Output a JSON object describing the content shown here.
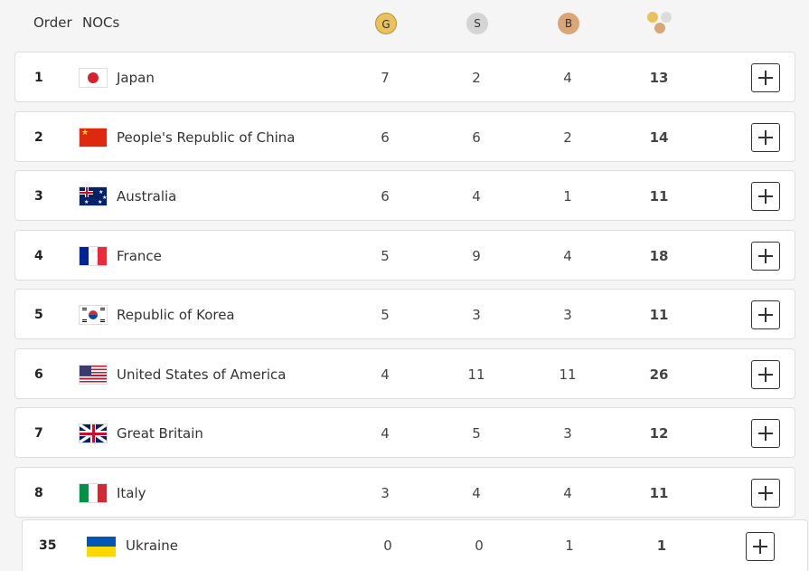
{
  "header": {
    "order_label": "Order",
    "noc_label": "NOCs",
    "gold_label": "G",
    "silver_label": "S",
    "bronze_label": "B",
    "total_icon": "total-medals-icon"
  },
  "rows": [
    {
      "rank": "1",
      "flag": "japan-flag-icon",
      "noc": "Japan",
      "gold": "7",
      "silver": "2",
      "bronze": "4",
      "total": "13"
    },
    {
      "rank": "2",
      "flag": "china-flag-icon",
      "noc": "People's Republic of China",
      "gold": "6",
      "silver": "6",
      "bronze": "2",
      "total": "14"
    },
    {
      "rank": "3",
      "flag": "australia-flag-icon",
      "noc": "Australia",
      "gold": "6",
      "silver": "4",
      "bronze": "1",
      "total": "11"
    },
    {
      "rank": "4",
      "flag": "france-flag-icon",
      "noc": "France",
      "gold": "5",
      "silver": "9",
      "bronze": "4",
      "total": "18"
    },
    {
      "rank": "5",
      "flag": "korea-flag-icon",
      "noc": "Republic of Korea",
      "gold": "5",
      "silver": "3",
      "bronze": "3",
      "total": "11"
    },
    {
      "rank": "6",
      "flag": "usa-flag-icon",
      "noc": "United States of America",
      "gold": "4",
      "silver": "11",
      "bronze": "11",
      "total": "26"
    },
    {
      "rank": "7",
      "flag": "great-britain-flag-icon",
      "noc": "Great Britain",
      "gold": "4",
      "silver": "5",
      "bronze": "3",
      "total": "12"
    },
    {
      "rank": "8",
      "flag": "italy-flag-icon",
      "noc": "Italy",
      "gold": "3",
      "silver": "4",
      "bronze": "4",
      "total": "11"
    },
    {
      "rank": "35",
      "flag": "ukraine-flag-icon",
      "noc": "Ukraine",
      "gold": "0",
      "silver": "0",
      "bronze": "1",
      "total": "1"
    }
  ],
  "colors": {
    "gold": "#e9c25b",
    "silver": "#d4d4d4",
    "bronze": "#d8a677"
  }
}
